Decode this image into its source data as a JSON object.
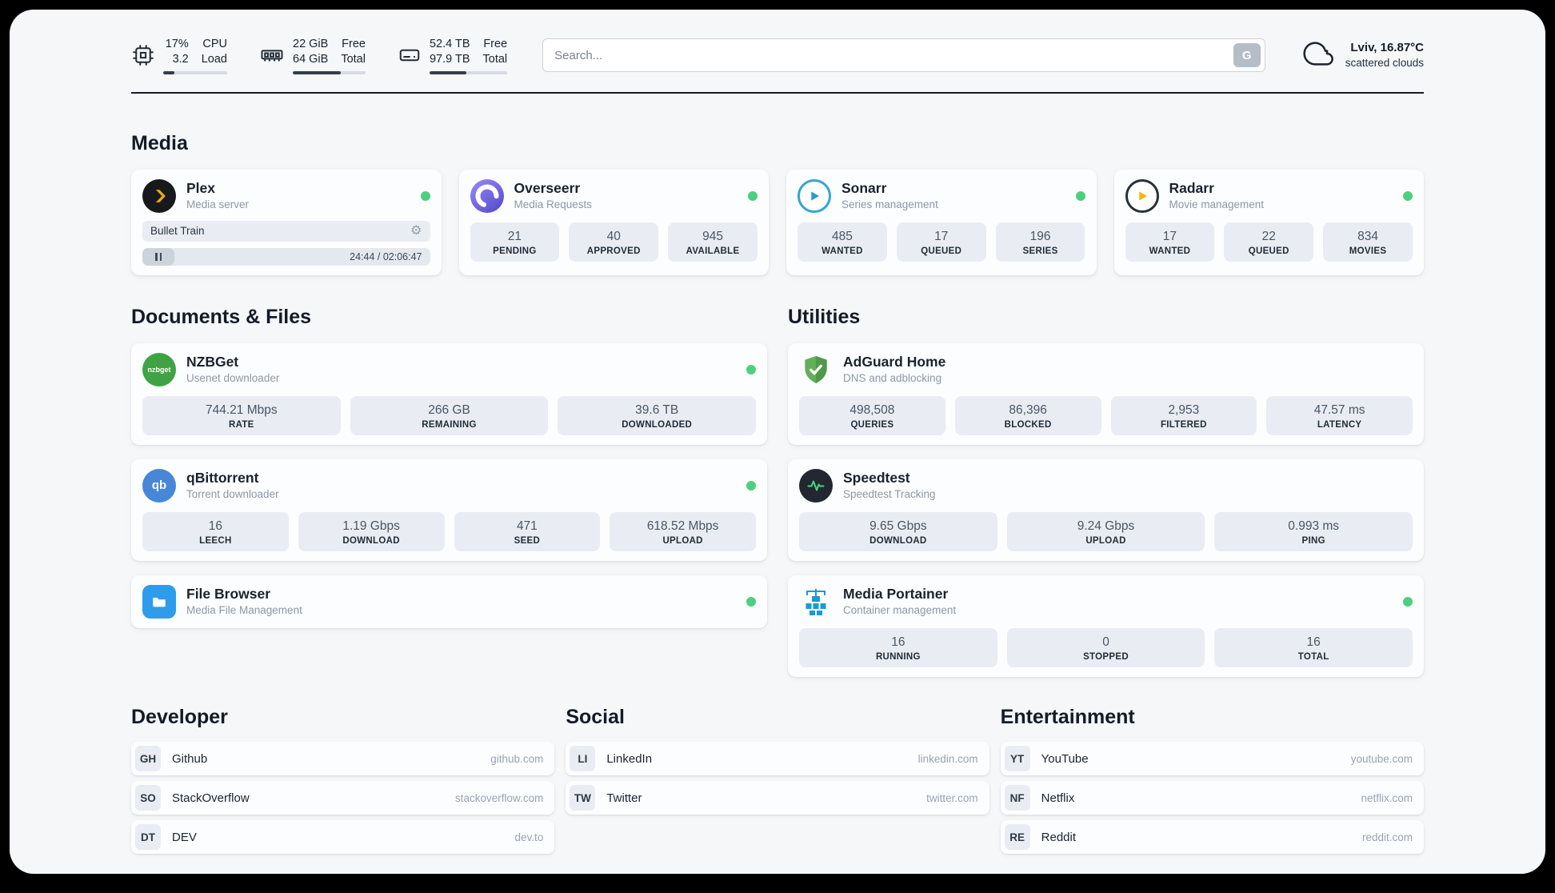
{
  "header": {
    "cpu": {
      "values": [
        "17%",
        "3.2"
      ],
      "labels": [
        "CPU",
        "Load"
      ],
      "percent": 17
    },
    "ram": {
      "values": [
        "22 GiB",
        "64 GiB"
      ],
      "labels": [
        "Free",
        "Total"
      ],
      "percent": 66
    },
    "disk": {
      "values": [
        "52.4 TB",
        "97.9 TB"
      ],
      "labels": [
        "Free",
        "Total"
      ],
      "percent": 47
    },
    "search": {
      "placeholder": "Search...",
      "button": "G"
    },
    "weather": {
      "location": "Lviv, 16.87°C",
      "condition": "scattered clouds"
    }
  },
  "sections": {
    "media": "Media",
    "documents": "Documents & Files",
    "utilities": "Utilities",
    "developer": "Developer",
    "social": "Social",
    "entertainment": "Entertainment"
  },
  "apps": {
    "plex": {
      "name": "Plex",
      "subtitle": "Media server",
      "now_playing": "Bullet Train",
      "time": "24:44 / 02:06:47"
    },
    "overseerr": {
      "name": "Overseerr",
      "subtitle": "Media Requests",
      "stats": [
        {
          "value": "21",
          "label": "PENDING"
        },
        {
          "value": "40",
          "label": "APPROVED"
        },
        {
          "value": "945",
          "label": "AVAILABLE"
        }
      ]
    },
    "sonarr": {
      "name": "Sonarr",
      "subtitle": "Series management",
      "stats": [
        {
          "value": "485",
          "label": "WANTED"
        },
        {
          "value": "17",
          "label": "QUEUED"
        },
        {
          "value": "196",
          "label": "SERIES"
        }
      ]
    },
    "radarr": {
      "name": "Radarr",
      "subtitle": "Movie management",
      "stats": [
        {
          "value": "17",
          "label": "WANTED"
        },
        {
          "value": "22",
          "label": "QUEUED"
        },
        {
          "value": "834",
          "label": "MOVIES"
        }
      ]
    },
    "nzbget": {
      "name": "NZBGet",
      "subtitle": "Usenet downloader",
      "icon_text": "nzbget",
      "stats": [
        {
          "value": "744.21 Mbps",
          "label": "RATE"
        },
        {
          "value": "266 GB",
          "label": "REMAINING"
        },
        {
          "value": "39.6 TB",
          "label": "DOWNLOADED"
        }
      ]
    },
    "qbittorrent": {
      "name": "qBittorrent",
      "subtitle": "Torrent downloader",
      "icon_text": "qb",
      "stats": [
        {
          "value": "16",
          "label": "LEECH"
        },
        {
          "value": "1.19 Gbps",
          "label": "DOWNLOAD"
        },
        {
          "value": "471",
          "label": "SEED"
        },
        {
          "value": "618.52 Mbps",
          "label": "UPLOAD"
        }
      ]
    },
    "filebrowser": {
      "name": "File Browser",
      "subtitle": "Media File Management"
    },
    "adguard": {
      "name": "AdGuard Home",
      "subtitle": "DNS and adblocking",
      "stats": [
        {
          "value": "498,508",
          "label": "QUERIES"
        },
        {
          "value": "86,396",
          "label": "BLOCKED"
        },
        {
          "value": "2,953",
          "label": "FILTERED"
        },
        {
          "value": "47.57 ms",
          "label": "LATENCY"
        }
      ]
    },
    "speedtest": {
      "name": "Speedtest",
      "subtitle": "Speedtest Tracking",
      "stats": [
        {
          "value": "9.65 Gbps",
          "label": "DOWNLOAD"
        },
        {
          "value": "9.24 Gbps",
          "label": "UPLOAD"
        },
        {
          "value": "0.993 ms",
          "label": "PING"
        }
      ]
    },
    "portainer": {
      "name": "Media Portainer",
      "subtitle": "Container management",
      "stats": [
        {
          "value": "16",
          "label": "RUNNING"
        },
        {
          "value": "0",
          "label": "STOPPED"
        },
        {
          "value": "16",
          "label": "TOTAL"
        }
      ]
    }
  },
  "bookmarks": {
    "developer": [
      {
        "abbr": "GH",
        "name": "Github",
        "url": "github.com"
      },
      {
        "abbr": "SO",
        "name": "StackOverflow",
        "url": "stackoverflow.com"
      },
      {
        "abbr": "DT",
        "name": "DEV",
        "url": "dev.to"
      }
    ],
    "social": [
      {
        "abbr": "LI",
        "name": "LinkedIn",
        "url": "linkedin.com"
      },
      {
        "abbr": "TW",
        "name": "Twitter",
        "url": "twitter.com"
      }
    ],
    "entertainment": [
      {
        "abbr": "YT",
        "name": "YouTube",
        "url": "youtube.com"
      },
      {
        "abbr": "NF",
        "name": "Netflix",
        "url": "netflix.com"
      },
      {
        "abbr": "RE",
        "name": "Reddit",
        "url": "reddit.com"
      }
    ]
  }
}
